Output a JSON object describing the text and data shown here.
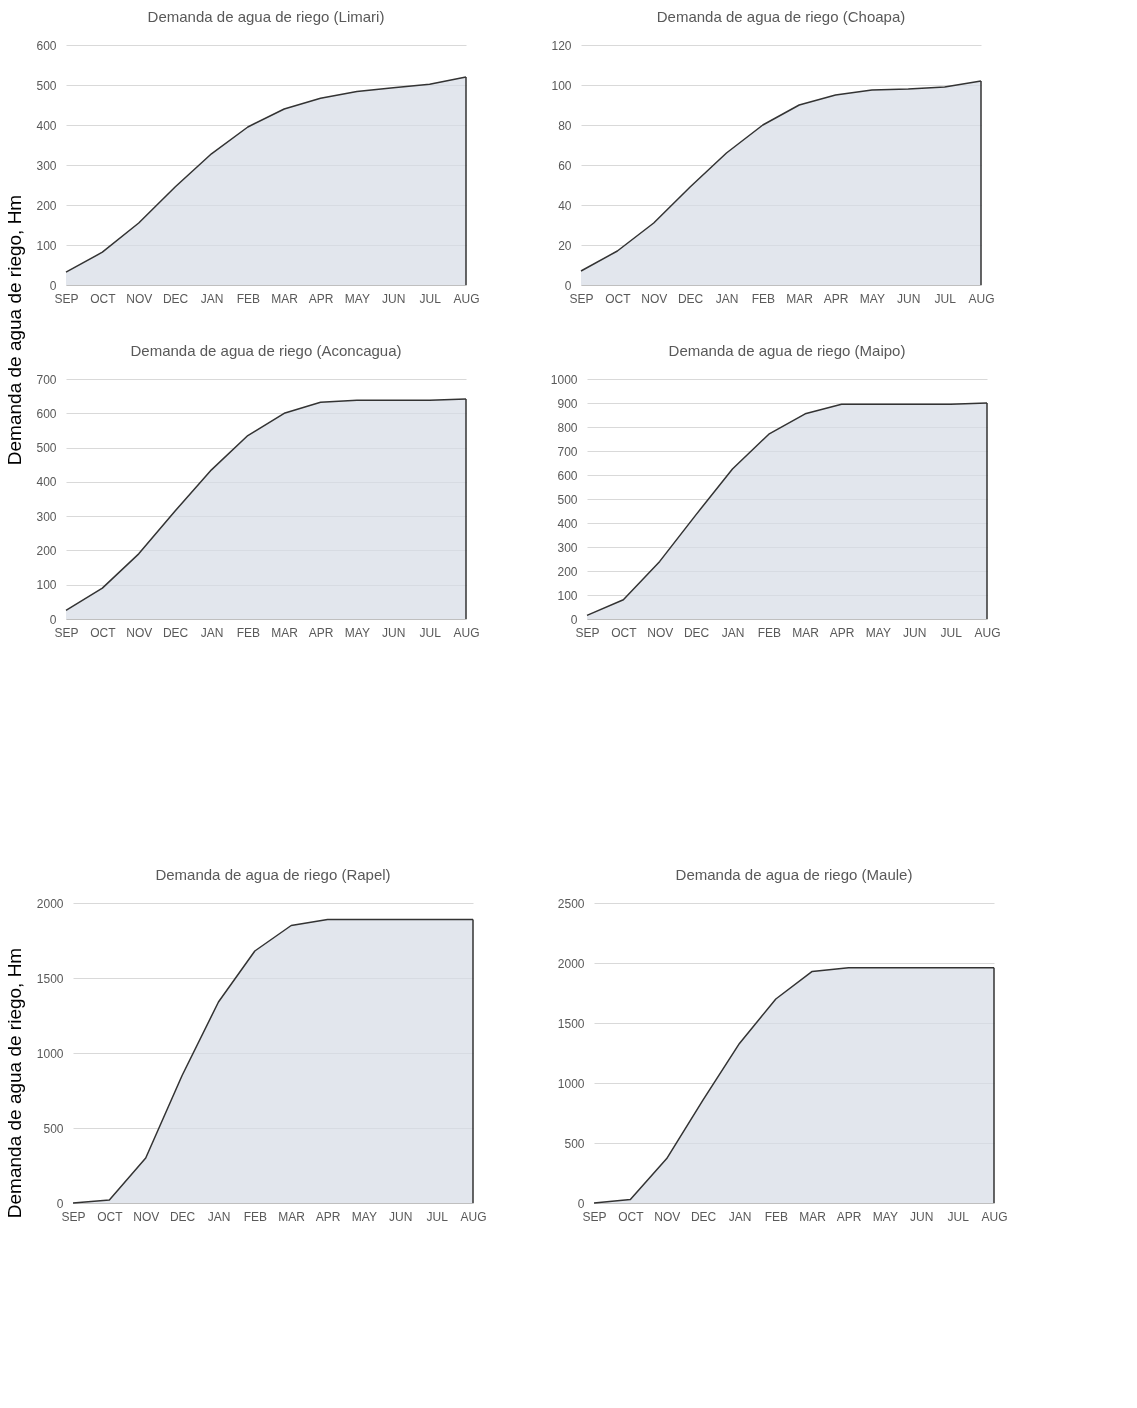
{
  "chart_data": [
    {
      "type": "area",
      "title": "Demanda de agua de riego (Limari)",
      "ylabel": "Demanda de agua de riego, Hm",
      "categories": [
        "SEP",
        "OCT",
        "NOV",
        "DEC",
        "JAN",
        "FEB",
        "MAR",
        "APR",
        "MAY",
        "JUN",
        "JUL",
        "AUG"
      ],
      "series": [
        {
          "color": "#d6dce5",
          "values": [
            32,
            82,
            155,
            245,
            328,
            395,
            440,
            467,
            484,
            493,
            502,
            520
          ]
        }
      ],
      "ylim": [
        0,
        600
      ],
      "yticks": [
        0,
        100,
        200,
        300,
        400,
        500,
        600
      ],
      "grid": "y"
    },
    {
      "type": "area",
      "title": "Demanda  de agua de riego (Choapa)",
      "categories": [
        "SEP",
        "OCT",
        "NOV",
        "DEC",
        "JAN",
        "FEB",
        "MAR",
        "APR",
        "MAY",
        "JUN",
        "JUL",
        "AUG"
      ],
      "series": [
        {
          "color": "#d6dce5",
          "values": [
            7,
            17,
            31,
            49,
            66,
            80,
            90,
            95,
            97.5,
            98,
            99,
            102
          ]
        }
      ],
      "ylim": [
        0,
        120
      ],
      "yticks": [
        0,
        20,
        40,
        60,
        80,
        100,
        120
      ],
      "grid": "y"
    },
    {
      "type": "area",
      "title": "Demanda de agua de riego (Aconcagua)",
      "categories": [
        "SEP",
        "OCT",
        "NOV",
        "DEC",
        "JAN",
        "FEB",
        "MAR",
        "APR",
        "MAY",
        "JUN",
        "JUL",
        "AUG"
      ],
      "series": [
        {
          "color": "#d6dce5",
          "values": [
            25,
            90,
            190,
            315,
            435,
            535,
            600,
            632,
            638,
            638,
            638,
            642
          ]
        }
      ],
      "ylim": [
        0,
        700
      ],
      "yticks": [
        0,
        100,
        200,
        300,
        400,
        500,
        600,
        700
      ],
      "grid": "y"
    },
    {
      "type": "area",
      "title": "Demanda de agua de riego (Maipo)",
      "categories": [
        "SEP",
        "OCT",
        "NOV",
        "DEC",
        "JAN",
        "FEB",
        "MAR",
        "APR",
        "MAY",
        "JUN",
        "JUL",
        "AUG"
      ],
      "series": [
        {
          "color": "#d6dce5",
          "values": [
            15,
            80,
            240,
            435,
            625,
            770,
            855,
            895,
            895,
            895,
            895,
            900
          ]
        }
      ],
      "ylim": [
        0,
        1000
      ],
      "yticks": [
        0,
        100,
        200,
        300,
        400,
        500,
        600,
        700,
        800,
        900,
        1000
      ],
      "grid": "y"
    },
    {
      "type": "area",
      "title": "Demanda de agua de riego (Rapel)",
      "ylabel": "Demanda de agua de riego, Hm",
      "categories": [
        "SEP",
        "OCT",
        "NOV",
        "DEC",
        "JAN",
        "FEB",
        "MAR",
        "APR",
        "MAY",
        "JUN",
        "JUL",
        "AUG"
      ],
      "series": [
        {
          "color": "#d6dce5",
          "values": [
            0,
            20,
            300,
            850,
            1340,
            1680,
            1850,
            1890,
            1890,
            1890,
            1890,
            1890
          ]
        }
      ],
      "ylim": [
        0,
        2000
      ],
      "yticks": [
        0,
        500,
        1000,
        1500,
        2000
      ],
      "grid": "y"
    },
    {
      "type": "area",
      "title": "Demanda de agua de riego (Maule)",
      "categories": [
        "SEP",
        "OCT",
        "NOV",
        "DEC",
        "JAN",
        "FEB",
        "MAR",
        "APR",
        "MAY",
        "JUN",
        "JUL",
        "AUG"
      ],
      "series": [
        {
          "color": "#d6dce5",
          "values": [
            0,
            30,
            370,
            860,
            1330,
            1700,
            1930,
            1960,
            1960,
            1960,
            1960,
            1960
          ]
        }
      ],
      "ylim": [
        0,
        2500
      ],
      "yticks": [
        0,
        500,
        1000,
        1500,
        2000,
        2500
      ],
      "grid": "y"
    }
  ]
}
